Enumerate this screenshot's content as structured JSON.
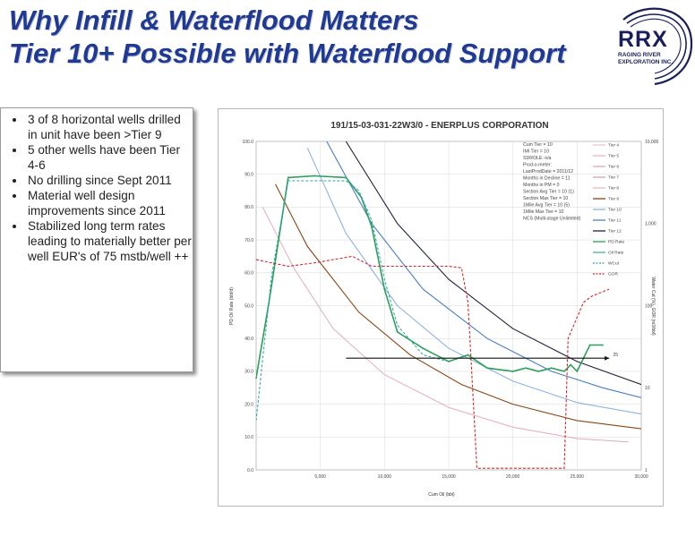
{
  "header": {
    "title_line1": "Why Infill & Waterflood Matters",
    "title_line2": "Tier 10+ Possible  with Waterflood Support"
  },
  "logo": {
    "name": "RRX",
    "subtitle": "RAGING RIVER EXPLORATION INC."
  },
  "bullets": [
    "3 of 8 horizontal wells drilled in unit have been >Tier 9",
    "5 other wells have been Tier 4-6",
    "No drilling since Sept 2011",
    "Material well design improvements since 2011",
    "Stabilized long term rates leading to materially better per well EUR's of 75 mstb/well ++"
  ],
  "colors": {
    "title": "#1f3a93",
    "logo": "#1a1f5c",
    "pd_rate": "#2ca05a",
    "wcut": "#2aa0a8",
    "gor": "#d02828"
  },
  "chart_data": {
    "type": "line",
    "title": "191/15-03-031-22W3/0 - ENERPLUS CORPORATION",
    "xlabel": "Cum Oil (bbl)",
    "ylabel": "PD Oil Rate (bbl/d)",
    "y2label": "Water Cut (%), GOR (m3/bbl)",
    "xlim": [
      0,
      30000
    ],
    "ylim": [
      0,
      100
    ],
    "x_ticks": [
      "5,000",
      "10,000",
      "15,000",
      "20,000",
      "25,000",
      "30,000"
    ],
    "y_ticks": [
      "0.0",
      "10.0",
      "20.0",
      "30.0",
      "40.0",
      "50.0",
      "60.0",
      "70.0",
      "80.0",
      "90.0",
      "100.0"
    ],
    "y2_ticks": [
      "1",
      "10",
      "100",
      "1,000",
      "10,000"
    ],
    "grid": true,
    "annotation": "25",
    "info_lines": [
      "Cum Tier = 10",
      "IMI Tier = 10",
      "SDROLE: n/a",
      "Prod-o-meter:",
      "LastProdDate = 2011/12",
      "Months in Decline = 11",
      "Months in PM = 0",
      "Section Avg Tier = 10 (1)",
      "Section Max Tier = 10",
      "1Mile Avg Tier = 10 (5)",
      "1Mile Max Tier = 10",
      "NCS (Multi-stage Unlimited)"
    ],
    "legend": [
      {
        "name": "Tier 4",
        "color": "#e6c8d8"
      },
      {
        "name": "Tier 5",
        "color": "#ecb7bd"
      },
      {
        "name": "Tier 6",
        "color": "#e0a8b0"
      },
      {
        "name": "Tier 7",
        "color": "#d6a0b2"
      },
      {
        "name": "Tier 8",
        "color": "#e8b8c0"
      },
      {
        "name": "Tier 9",
        "color": "#8b4513"
      },
      {
        "name": "Tier 10",
        "color": "#8fb4e0"
      },
      {
        "name": "Tier 11",
        "color": "#4a7fc0"
      },
      {
        "name": "Tier 12",
        "color": "#1e2340"
      },
      {
        "name": "PD Rate",
        "color": "#2ca05a"
      },
      {
        "name": "Oil Rate",
        "color": "#3fb88a"
      },
      {
        "name": "WCut",
        "color": "#2aa0a8"
      },
      {
        "name": "GOR",
        "color": "#d02828"
      }
    ],
    "tier_curves": [
      {
        "name": "Tier 8",
        "color": "#e6b3bc",
        "values": [
          [
            500,
            80
          ],
          [
            3000,
            61
          ],
          [
            6000,
            43
          ],
          [
            10000,
            29
          ],
          [
            15000,
            19
          ],
          [
            20000,
            13
          ],
          [
            25000,
            9.5
          ],
          [
            29000,
            8.5
          ]
        ]
      },
      {
        "name": "Tier 9",
        "color": "#8b4513",
        "values": [
          [
            1500,
            87
          ],
          [
            4000,
            68
          ],
          [
            8000,
            48
          ],
          [
            12000,
            35
          ],
          [
            16000,
            26
          ],
          [
            20000,
            20
          ],
          [
            25000,
            15
          ],
          [
            30000,
            12.5
          ]
        ]
      },
      {
        "name": "Tier 10",
        "color": "#8fb4e0",
        "values": [
          [
            4000,
            98
          ],
          [
            7000,
            72
          ],
          [
            11000,
            50
          ],
          [
            15000,
            37
          ],
          [
            20000,
            27
          ],
          [
            25000,
            20.5
          ],
          [
            30000,
            17
          ]
        ]
      },
      {
        "name": "Tier 11",
        "color": "#4a7fc0",
        "values": [
          [
            5500,
            100
          ],
          [
            9000,
            75
          ],
          [
            13000,
            55
          ],
          [
            18000,
            40
          ],
          [
            23000,
            30
          ],
          [
            27000,
            25
          ],
          [
            30000,
            22
          ]
        ]
      },
      {
        "name": "Tier 12",
        "color": "#1e2340",
        "values": [
          [
            7000,
            100
          ],
          [
            11000,
            75
          ],
          [
            15000,
            58
          ],
          [
            20000,
            43
          ],
          [
            25000,
            33
          ],
          [
            30000,
            26
          ]
        ]
      }
    ],
    "series": [
      {
        "name": "PD Rate",
        "color": "#2ca05a",
        "values": [
          [
            0,
            28
          ],
          [
            1000,
            51
          ],
          [
            2500,
            89
          ],
          [
            4500,
            89.5
          ],
          [
            7000,
            89
          ],
          [
            8200,
            83
          ],
          [
            9000,
            74
          ],
          [
            10000,
            55
          ],
          [
            11000,
            42
          ],
          [
            13000,
            37
          ],
          [
            15000,
            33
          ],
          [
            16500,
            35
          ],
          [
            18000,
            31
          ],
          [
            20000,
            30
          ],
          [
            21000,
            31
          ],
          [
            22000,
            30
          ],
          [
            23000,
            31
          ],
          [
            24000,
            30
          ],
          [
            24500,
            32
          ],
          [
            25000,
            30
          ],
          [
            26000,
            38
          ],
          [
            27000,
            38
          ]
        ]
      },
      {
        "name": "WCut",
        "color": "#2aa0a8",
        "values": [
          [
            0,
            15
          ],
          [
            1200,
            59
          ],
          [
            2500,
            88
          ],
          [
            4500,
            88
          ],
          [
            7000,
            88
          ],
          [
            8000,
            85
          ],
          [
            9000,
            76
          ],
          [
            10000,
            58
          ],
          [
            11000,
            44
          ],
          [
            13000,
            35
          ],
          [
            15000,
            33
          ]
        ]
      },
      {
        "name": "GOR",
        "color": "#d02828",
        "values": [
          [
            0,
            64
          ],
          [
            2500,
            62
          ],
          [
            4500,
            63
          ],
          [
            7500,
            65
          ],
          [
            9000,
            62
          ],
          [
            13000,
            62
          ],
          [
            15000,
            62
          ],
          [
            16000,
            61.5
          ],
          [
            16500,
            51
          ],
          [
            17200,
            0.5
          ],
          [
            20000,
            0.5
          ],
          [
            24000,
            0.5
          ],
          [
            24300,
            40
          ],
          [
            25500,
            51
          ],
          [
            26200,
            53
          ],
          [
            27500,
            55
          ]
        ]
      }
    ]
  }
}
